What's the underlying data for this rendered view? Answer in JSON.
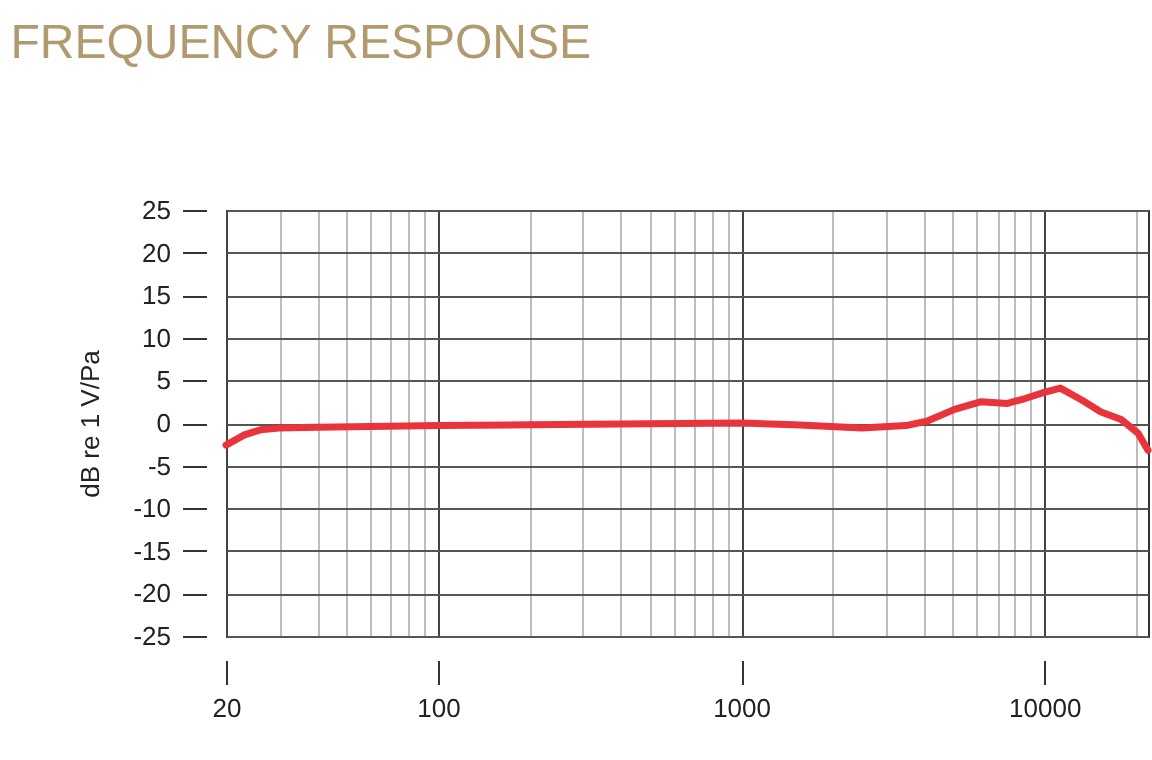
{
  "chart_data": {
    "type": "line",
    "title": "FREQUENCY RESPONSE",
    "ylabel": "dB re 1 V/Pa",
    "log": "x",
    "grid": true,
    "marker": "none",
    "line_style": "solid",
    "xlim": [
      20,
      22000
    ],
    "ylim": [
      -25,
      25
    ],
    "yticks": [
      -25,
      -20,
      -15,
      -10,
      -5,
      0,
      5,
      10,
      15,
      20,
      25
    ],
    "xticks": [
      {
        "value": 20,
        "label": "20"
      },
      {
        "value": 30,
        "label": null
      },
      {
        "value": 40,
        "label": null
      },
      {
        "value": 50,
        "label": null
      },
      {
        "value": 60,
        "label": null
      },
      {
        "value": 70,
        "label": null
      },
      {
        "value": 80,
        "label": null
      },
      {
        "value": 90,
        "label": null
      },
      {
        "value": 100,
        "label": "100"
      },
      {
        "value": 200,
        "label": null
      },
      {
        "value": 300,
        "label": null
      },
      {
        "value": 400,
        "label": null
      },
      {
        "value": 500,
        "label": null
      },
      {
        "value": 600,
        "label": null
      },
      {
        "value": 700,
        "label": null
      },
      {
        "value": 800,
        "label": null
      },
      {
        "value": 900,
        "label": null
      },
      {
        "value": 1000,
        "label": "1000"
      },
      {
        "value": 2000,
        "label": null
      },
      {
        "value": 3000,
        "label": null
      },
      {
        "value": 4000,
        "label": null
      },
      {
        "value": 5000,
        "label": null
      },
      {
        "value": 6000,
        "label": null
      },
      {
        "value": 7000,
        "label": null
      },
      {
        "value": 8000,
        "label": null
      },
      {
        "value": 9000,
        "label": null
      },
      {
        "value": 10000,
        "label": "10000"
      },
      {
        "value": 20000,
        "label": null
      }
    ],
    "x": [
      20,
      23,
      26,
      30,
      40,
      60,
      100,
      200,
      500,
      1000,
      1500,
      2500,
      3500,
      4100,
      5060,
      6200,
      7570,
      8700,
      10000,
      11300,
      13300,
      15400,
      17950,
      20400,
      22000
    ],
    "series": [
      {
        "color": "#e8343a",
        "values": [
          -2.6,
          -1.4,
          -0.8,
          -0.6,
          -0.5,
          -0.4,
          -0.3,
          -0.2,
          -0.1,
          0,
          -0.2,
          -0.6,
          -0.3,
          0.2,
          1.6,
          2.5,
          2.3,
          2.9,
          3.6,
          4.1,
          2.7,
          1.3,
          0.4,
          -1.2,
          -3.2
        ]
      }
    ]
  }
}
